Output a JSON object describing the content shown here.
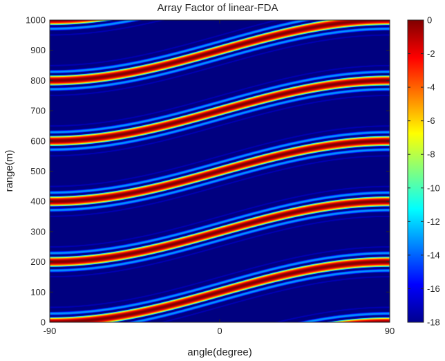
{
  "chart_data": {
    "type": "heatmap",
    "title": "Array Factor of linear-FDA",
    "xlabel": "angle(degree)",
    "ylabel": "range(m)",
    "xlim": [
      -90,
      90
    ],
    "ylim": [
      0,
      1000
    ],
    "x_ticks": [
      -90,
      0,
      90
    ],
    "y_ticks": [
      0,
      100,
      200,
      300,
      400,
      500,
      600,
      700,
      800,
      900,
      1000
    ],
    "colorbar": {
      "range": [
        -18,
        0
      ],
      "ticks": [
        0,
        -2,
        -4,
        -6,
        -8,
        -10,
        -12,
        -14,
        -16,
        -18
      ],
      "colormap": "jet"
    },
    "pattern": {
      "description": "main-lobe ridges follow range = 100 + 200*k + 100*sin(angle)",
      "ridge_period_m": 200,
      "ridge_offset_m": 100,
      "ridge_amplitude_m": 100
    }
  }
}
